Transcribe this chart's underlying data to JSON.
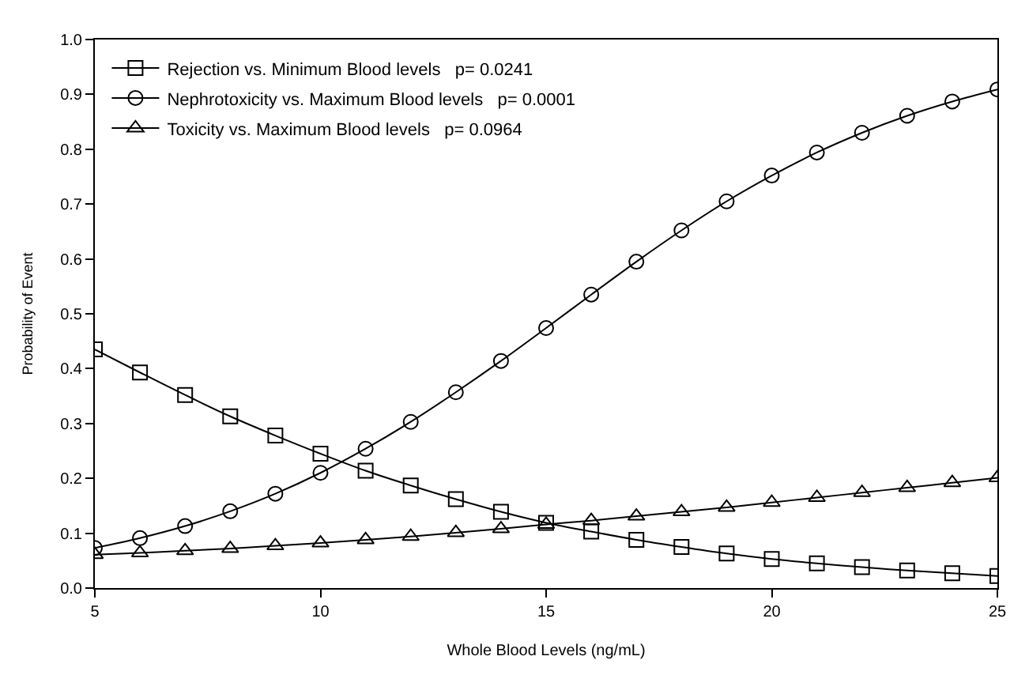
{
  "chart_data": {
    "type": "line",
    "xlabel": "Whole Blood Levels (ng/mL)",
    "ylabel": "Probability of Event",
    "x": [
      5,
      6,
      7,
      8,
      9,
      10,
      11,
      12,
      13,
      14,
      15,
      16,
      17,
      18,
      19,
      20,
      21,
      22,
      23,
      24,
      25
    ],
    "series": [
      {
        "name": "Rejection vs. Minimum Blood levels   p= 0.0241",
        "color": "#000000",
        "marker": "square",
        "values": [
          0.435,
          0.393,
          0.352,
          0.313,
          0.278,
          0.245,
          0.214,
          0.187,
          0.162,
          0.139,
          0.119,
          0.103,
          0.088,
          0.075,
          0.063,
          0.053,
          0.045,
          0.038,
          0.032,
          0.027,
          0.022
        ]
      },
      {
        "name": "Nephrotoxicity vs. Maximum Blood levels   p= 0.0001",
        "color": "#000000",
        "marker": "circle",
        "values": [
          0.073,
          0.091,
          0.113,
          0.14,
          0.172,
          0.21,
          0.254,
          0.303,
          0.357,
          0.414,
          0.474,
          0.535,
          0.595,
          0.652,
          0.705,
          0.752,
          0.794,
          0.83,
          0.861,
          0.887,
          0.909
        ]
      },
      {
        "name": "Toxicity vs. Maximum Blood levels   p= 0.0964",
        "color": "#000000",
        "marker": "triangle",
        "values": [
          0.061,
          0.064,
          0.068,
          0.072,
          0.077,
          0.082,
          0.088,
          0.094,
          0.101,
          0.108,
          0.116,
          0.123,
          0.131,
          0.139,
          0.147,
          0.156,
          0.165,
          0.174,
          0.183,
          0.192,
          0.201
        ]
      }
    ],
    "xlim": [
      5,
      25
    ],
    "xticks": [
      5,
      10,
      15,
      20,
      25
    ],
    "ylim": [
      0,
      1
    ],
    "yticks": [
      {
        "value": 0,
        "label": "0.0"
      },
      0.1,
      0.2,
      0.3,
      0.4,
      0.5,
      0.6,
      0.7,
      0.8,
      0.9,
      {
        "value": 1,
        "label": "1.0"
      }
    ],
    "legend": "top left"
  }
}
